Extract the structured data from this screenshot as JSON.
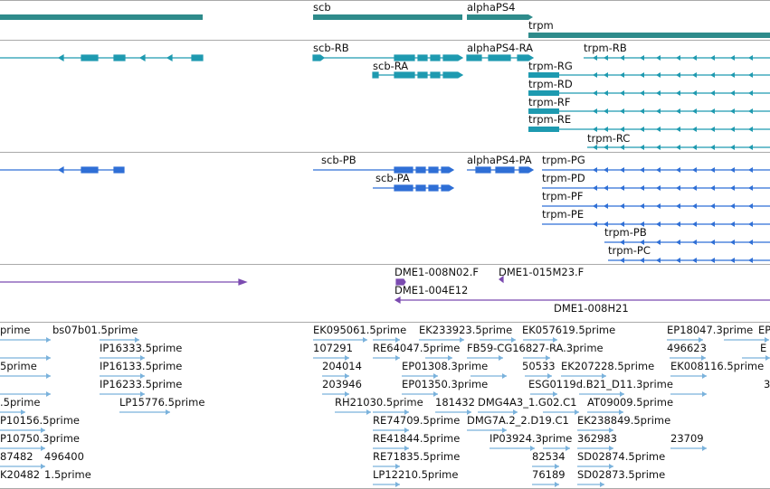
{
  "colors": {
    "gene": "#2e8b8b",
    "transcript": "#1e9ab0",
    "protein": "#2f6fd6",
    "clone": "#7b4bb0",
    "est": "#7ab2dc",
    "separator": "#a9a9a9"
  },
  "genes": {
    "scb": "scb",
    "alphaPS4": "alphaPS4",
    "trpm": "trpm"
  },
  "transcripts": {
    "scb_RB": "scb-RB",
    "scb_RA": "scb-RA",
    "alphaPS4_RA": "alphaPS4-RA",
    "trpm_RB": "trpm-RB",
    "trpm_RG": "trpm-RG",
    "trpm_RD": "trpm-RD",
    "trpm_RF": "trpm-RF",
    "trpm_RE": "trpm-RE",
    "trpm_RC": "trpm-RC"
  },
  "proteins": {
    "scb_PB": "scb-PB",
    "scb_PA": "scb-PA",
    "alphaPS4_PA": "alphaPS4-PA",
    "trpm_PG": "trpm-PG",
    "trpm_PD": "trpm-PD",
    "trpm_PF": "trpm-PF",
    "trpm_PE": "trpm-PE",
    "trpm_PB": "trpm-PB",
    "trpm_PC": "trpm-PC"
  },
  "clones": {
    "c1": "DME1-008N02.F",
    "c2": "DME1-015M23.F",
    "c3": "DME1-004E12",
    "c4": "DME1-008H21"
  },
  "ests": {
    "e1": "prime",
    "e2": "bs07b01.5prime",
    "e3": "IP16333.5prime",
    "e4": "5prime",
    "e5": "IP16133.5prime",
    "e6": "IP16233.5prime",
    "e7": ".5prime",
    "e8": "LP15776.5prime",
    "e9": "P10156.5prime",
    "e10": "P10750.3prime",
    "e11": "87482",
    "e12": "496400",
    "e13": "K20482",
    "e14": "1.5prime",
    "e15": "EK095061.5prime",
    "e16": "EK233923.5prime",
    "e17": "EK057619.5prime",
    "e18": "EP18047.3prime",
    "e19": "107291",
    "e20": "RE64047.5prime",
    "e21": "FB59-CG16827-RA.3prime",
    "e22": "496623",
    "e23": "204014",
    "e24": "EP01308.3prime",
    "e25": "50533",
    "e26": "EK207228.5prime",
    "e27": "EK008116.5prime",
    "e28": "203946",
    "e29": "EP01350.3prime",
    "e30": "ESG0119d.B21_D11.3prime",
    "e31": "RH21030.5prime",
    "e32": "181432",
    "e33": "DMG4A3_1.G02.C1",
    "e34": "AT09009.5prime",
    "e35": "RE74709.5prime",
    "e36": "DMG7A.2_2.D19.C1",
    "e37": "EK238849.5prime",
    "e38": "RE41844.5prime",
    "e39": "IP03924.3prime",
    "e40": "362983",
    "e41": "23709",
    "e42": "RE71835.5prime",
    "e43": "82534",
    "e44": "SD02874.5prime",
    "e45": "LP12210.5prime",
    "e46": "76189",
    "e47": "SD02873.5prime",
    "e48": "EP",
    "e49": "E",
    "e50": "3"
  }
}
